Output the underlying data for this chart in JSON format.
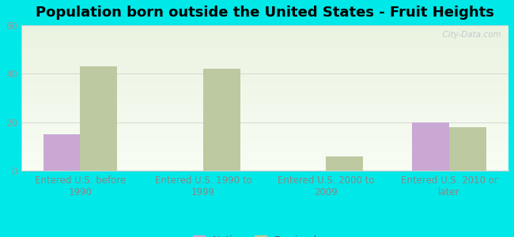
{
  "title": "Population born outside the United States - Fruit Heights",
  "categories": [
    "Entered U.S. before\n1990",
    "Entered U.S. 1990 to\n1999",
    "Entered U.S. 2000 to\n2009",
    "Entered U.S. 2010 or\nlater"
  ],
  "native_values": [
    15,
    0,
    0,
    20
  ],
  "foreign_values": [
    43,
    42,
    6,
    18
  ],
  "native_color": "#c9a8d4",
  "foreign_color": "#bdc9a0",
  "background_color": "#00e8e8",
  "plot_bg_top": "#eaf2e0",
  "plot_bg_bottom": "#f8fdf4",
  "ylim": [
    0,
    60
  ],
  "yticks": [
    0,
    20,
    40,
    60
  ],
  "bar_width": 0.3,
  "title_fontsize": 13,
  "tick_fontsize": 8.5,
  "legend_fontsize": 9,
  "watermark_text": "  City-Data.com",
  "watermark_color": "#c0ccd0",
  "tick_color": "#999999",
  "label_color": "#888888"
}
